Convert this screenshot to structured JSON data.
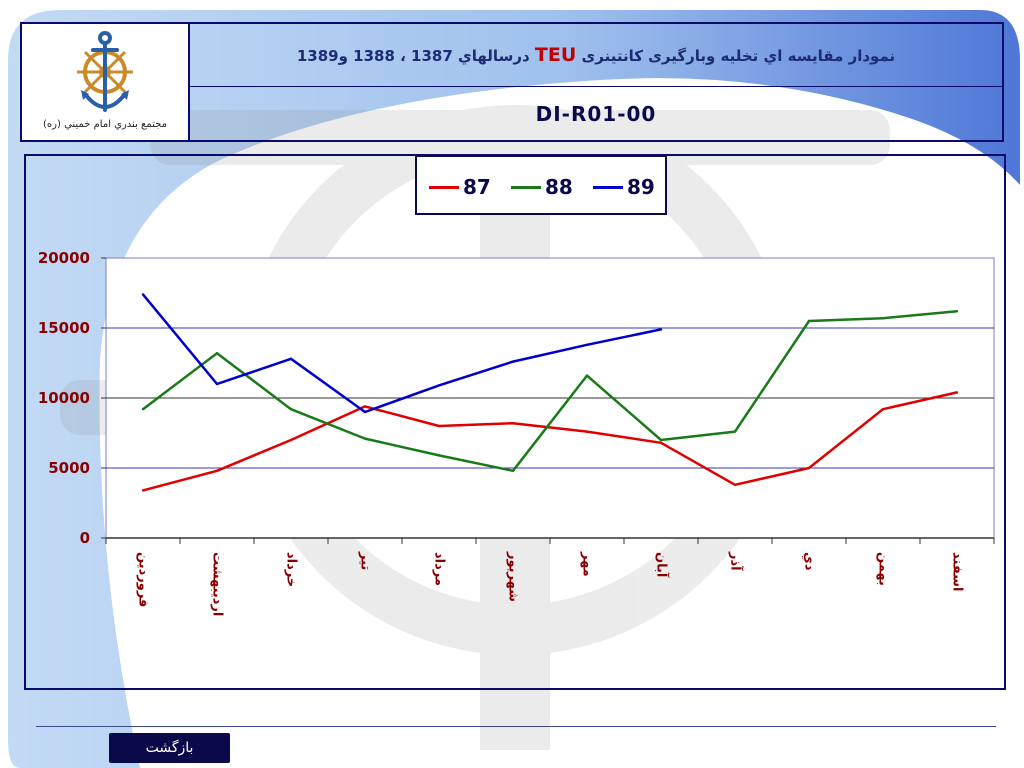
{
  "header": {
    "title_part1": "نمودار مقايسه اي تخليه وبارگيری کانتينری",
    "title_teu": "TEU",
    "title_part2": "درسالهاي 1387 ، 1388 و1389",
    "document_code": "DI-R01-00",
    "logo_caption": "مجتمع بندري امام خميني (ره)"
  },
  "footer": {
    "back_label": "بازگشت"
  },
  "colors": {
    "frame": "#0a0a6a",
    "series_87": "#e00000",
    "series_88": "#1a7a1a",
    "series_89": "#0000cc"
  },
  "legend": {
    "items": [
      {
        "label": "87",
        "color": "#e00000"
      },
      {
        "label": "88",
        "color": "#1a7a1a"
      },
      {
        "label": "89",
        "color": "#0000cc"
      }
    ]
  },
  "chart_data": {
    "type": "line",
    "categories": [
      "فروردين",
      "ارديبهشت",
      "خرداد",
      "تير",
      "مرداد",
      "شهريور",
      "مهر",
      "آبان",
      "آذر",
      "دي",
      "بهمن",
      "اسفند"
    ],
    "series": [
      {
        "name": "87",
        "values": [
          3400,
          4800,
          7000,
          9400,
          8000,
          8200,
          7600,
          6800,
          3800,
          5000,
          9200,
          10400
        ]
      },
      {
        "name": "88",
        "values": [
          9200,
          13200,
          9200,
          7100,
          5900,
          4800,
          11600,
          7000,
          7600,
          15500,
          15700,
          16200
        ]
      },
      {
        "name": "89",
        "values": [
          17400,
          11000,
          12800,
          9000,
          10900,
          12600,
          13800,
          14900,
          null,
          null,
          null,
          null
        ]
      }
    ],
    "y_ticks": [
      "0",
      "5000",
      "10000",
      "15000",
      "20000"
    ],
    "ylim": [
      0,
      20000
    ],
    "grid": true,
    "legend_position": "top-center"
  }
}
